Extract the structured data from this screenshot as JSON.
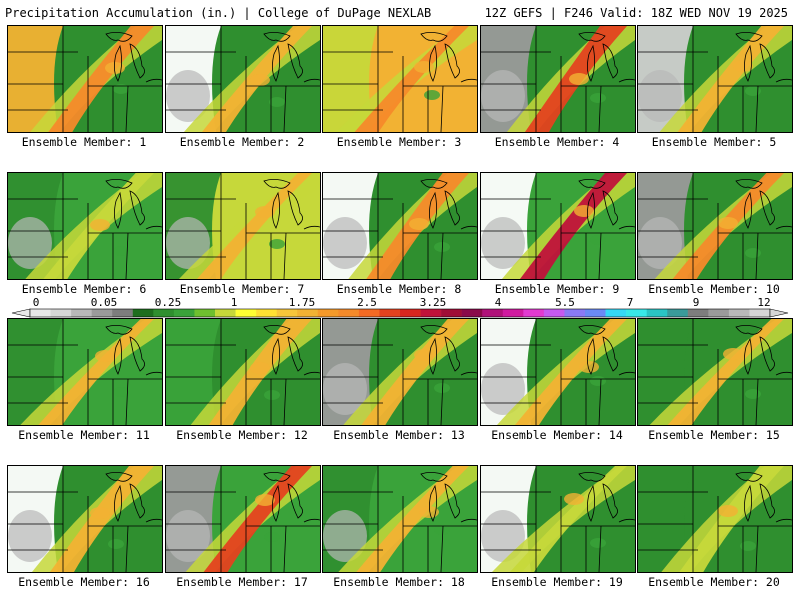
{
  "header": {
    "title_left": "Precipitation Accumulation (in.) | College of DuPage NEXLAB",
    "title_right": "12Z GEFS | F246 Valid: 18Z WED NOV 19 2025"
  },
  "members": [
    {
      "label": "Ensemble Member: 1",
      "west": "#f2b233",
      "east": "#2f8f2f",
      "band": "#f58a2a",
      "grey": false
    },
    {
      "label": "Ensemble Member: 2",
      "west": "#ffffff",
      "east": "#2f8f2f",
      "band": "#f2b233",
      "grey": true
    },
    {
      "label": "Ensemble Member: 3",
      "west": "#c6d83a",
      "east": "#f2b233",
      "band": "#f58a2a",
      "grey": false
    },
    {
      "label": "Ensemble Member: 4",
      "west": "#9a9a9a",
      "east": "#2f8f2f",
      "band": "#e4421f",
      "grey": true
    },
    {
      "label": "Ensemble Member: 5",
      "west": "#cfcfcf",
      "east": "#2f8f2f",
      "band": "#f2b233",
      "grey": true
    },
    {
      "label": "Ensemble Member: 6",
      "west": "#2f8f2f",
      "east": "#3aa33a",
      "band": "#c6d83a",
      "grey": true
    },
    {
      "label": "Ensemble Member: 7",
      "west": "#2f8f2f",
      "east": "#c6d83a",
      "band": "#f2b233",
      "grey": true
    },
    {
      "label": "Ensemble Member: 8",
      "west": "#ffffff",
      "east": "#2f8f2f",
      "band": "#f58a2a",
      "grey": true
    },
    {
      "label": "Ensemble Member: 9",
      "west": "#ffffff",
      "east": "#3aa33a",
      "band": "#c0123a",
      "grey": true
    },
    {
      "label": "Ensemble Member: 10",
      "west": "#9a9a9a",
      "east": "#2f8f2f",
      "band": "#f58a2a",
      "grey": true
    },
    {
      "label": "Ensemble Member: 11",
      "west": "#2f8f2f",
      "east": "#3aa33a",
      "band": "#f2b233",
      "grey": false
    },
    {
      "label": "Ensemble Member: 12",
      "west": "#3aa33a",
      "east": "#2f8f2f",
      "band": "#f2b233",
      "grey": false
    },
    {
      "label": "Ensemble Member: 13",
      "west": "#9a9a9a",
      "east": "#2f8f2f",
      "band": "#f2b233",
      "grey": true
    },
    {
      "label": "Ensemble Member: 14",
      "west": "#ffffff",
      "east": "#2f8f2f",
      "band": "#f2b233",
      "grey": true
    },
    {
      "label": "Ensemble Member: 15",
      "west": "#2f8f2f",
      "east": "#2f8f2f",
      "band": "#f2b233",
      "grey": false
    },
    {
      "label": "Ensemble Member: 16",
      "west": "#ffffff",
      "east": "#2f8f2f",
      "band": "#f2b233",
      "grey": true
    },
    {
      "label": "Ensemble Member: 17",
      "west": "#9a9a9a",
      "east": "#3aa33a",
      "band": "#e4421f",
      "grey": true
    },
    {
      "label": "Ensemble Member: 18",
      "west": "#2f8f2f",
      "east": "#3aa33a",
      "band": "#f2b233",
      "grey": true
    },
    {
      "label": "Ensemble Member: 19",
      "west": "#ffffff",
      "east": "#2f8f2f",
      "band": "#c6d83a",
      "grey": true
    },
    {
      "label": "Ensemble Member: 20",
      "west": "#2f8f2f",
      "east": "#2f8f2f",
      "band": "#c6d83a",
      "grey": false
    }
  ],
  "colorbar": {
    "labels": [
      "0",
      "0.05",
      "0.25",
      "1",
      "1.75",
      "2.5",
      "3.25",
      "4",
      "5.5",
      "7",
      "9",
      "12"
    ],
    "colors": [
      "#e8e8e8",
      "#d6d6d6",
      "#b8b8b8",
      "#9a9a9a",
      "#7d7d7d",
      "#1e6e1e",
      "#2f8f2f",
      "#3aa33a",
      "#6fbf2f",
      "#c6d83a",
      "#ffff33",
      "#ffe033",
      "#f7c53a",
      "#f2b233",
      "#f59a2a",
      "#f58a2a",
      "#f46a24",
      "#e4421f",
      "#d7261f",
      "#c0123a",
      "#a00d36",
      "#8a0a4a",
      "#b0117a",
      "#d01aa0",
      "#e23ad0",
      "#c65af0",
      "#8a7af5",
      "#6a8af5",
      "#36d8f5",
      "#38e8e8",
      "#2ac4c4",
      "#3a9a9a",
      "#7d7d7d",
      "#9a9a9a",
      "#b8b8b8",
      "#d6d6d6"
    ]
  }
}
